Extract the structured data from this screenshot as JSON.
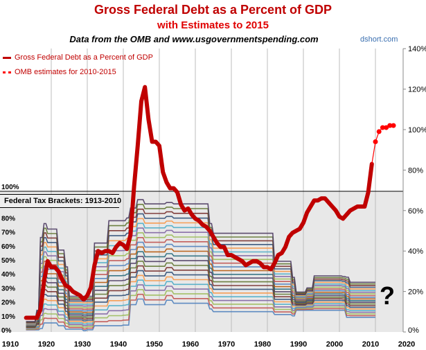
{
  "title": "Gross Federal Debt as a Percent of GDP",
  "subtitle": "with Estimates to 2015",
  "source": "Data from the OMB and www.usgovernmentspending.com",
  "credit": "dshort.com",
  "annotation": "?",
  "chart_data": {
    "type": "line",
    "x_ticks": [
      "1910",
      "1920",
      "1930",
      "1940",
      "1950",
      "1960",
      "1970",
      "1980",
      "1990",
      "2000",
      "2010",
      "2020"
    ],
    "xlim": [
      1910,
      2020
    ],
    "right_axis": {
      "ylim": [
        0,
        140
      ],
      "ticks": [
        "0%",
        "20%",
        "40%",
        "60%",
        "80%",
        "100%",
        "120%",
        "140%"
      ]
    },
    "left_axis": {
      "ylim": [
        0,
        100
      ],
      "ticks": [
        "0%",
        "10%",
        "20%",
        "30%",
        "40%",
        "50%",
        "60%",
        "70%",
        "80%",
        "100%"
      ]
    },
    "legend": [
      "Gross Federal Debt as a Percent of GDP",
      "OMB estimates for 2010-2015"
    ],
    "inset_label": "Federal Tax Brackets: 1913-2010",
    "colors": {
      "debt": "#c00000",
      "estimates": "#ff0000",
      "panel": "#e8e8e8"
    },
    "series": [
      {
        "name": "Gross Federal Debt as a Percent of GDP",
        "axis": "right",
        "x": [
          1913,
          1916,
          1917,
          1918,
          1919,
          1920,
          1921,
          1922,
          1923,
          1924,
          1925,
          1926,
          1927,
          1928,
          1929,
          1930,
          1931,
          1932,
          1933,
          1934,
          1935,
          1936,
          1937,
          1938,
          1939,
          1940,
          1941,
          1942,
          1943,
          1944,
          1945,
          1946,
          1947,
          1948,
          1949,
          1950,
          1951,
          1952,
          1953,
          1954,
          1955,
          1956,
          1957,
          1958,
          1959,
          1960,
          1961,
          1962,
          1963,
          1964,
          1965,
          1966,
          1967,
          1968,
          1969,
          1970,
          1971,
          1972,
          1973,
          1974,
          1975,
          1976,
          1977,
          1978,
          1979,
          1980,
          1981,
          1982,
          1983,
          1984,
          1985,
          1986,
          1987,
          1988,
          1989,
          1990,
          1991,
          1992,
          1993,
          1994,
          1995,
          1996,
          1997,
          1998,
          1999,
          2000,
          2001,
          2002,
          2003,
          2004,
          2005,
          2006,
          2007,
          2008,
          2009
        ],
        "y": [
          7,
          7,
          11,
          25,
          35,
          32,
          32,
          30,
          26,
          23,
          22,
          20,
          19,
          18,
          16,
          18,
          22,
          33,
          40,
          39,
          40,
          40,
          39,
          42,
          44,
          43,
          41,
          48,
          72,
          92,
          114,
          121,
          105,
          94,
          94,
          92,
          79,
          74,
          71,
          71,
          69,
          63,
          60,
          61,
          58,
          56,
          55,
          53,
          52,
          50,
          47,
          44,
          42,
          42,
          38,
          38,
          37,
          36,
          35,
          33,
          34,
          35,
          35,
          34,
          32,
          32,
          31,
          34,
          38,
          39,
          42,
          47,
          49,
          50,
          51,
          54,
          59,
          62,
          65,
          65,
          66,
          66,
          64,
          62,
          60,
          57,
          56,
          58,
          60,
          61,
          62,
          62,
          62,
          69,
          83
        ]
      },
      {
        "name": "OMB estimates for 2010-2015",
        "axis": "right",
        "x": [
          2009,
          2010,
          2011,
          2012,
          2013,
          2014,
          2015
        ],
        "y": [
          83,
          94,
          99,
          101,
          101,
          102,
          102
        ]
      },
      {
        "name": "Top bracket rate",
        "axis": "left",
        "x": [
          1913,
          1916,
          1917,
          1918,
          1919,
          1922,
          1924,
          1925,
          1932,
          1936,
          1941,
          1942,
          1944,
          1946,
          1952,
          1954,
          1964,
          1965,
          1982,
          1987,
          1988,
          1991,
          1993,
          2001,
          2002,
          2003,
          2010
        ],
        "y": [
          7,
          15,
          67,
          77,
          73,
          58,
          46,
          25,
          63,
          79,
          81,
          88,
          94,
          91,
          92,
          91,
          77,
          70,
          50,
          38.5,
          28,
          31,
          39.6,
          39.1,
          38.6,
          35,
          35
        ]
      },
      {
        "name": "Bottom bracket rate",
        "axis": "left",
        "x": [
          1913,
          1917,
          1918,
          1922,
          1924,
          1929,
          1930,
          1932,
          1940,
          1942,
          1944,
          1946,
          1952,
          1954,
          1964,
          1965,
          1982,
          1987,
          1988,
          2002,
          2010
        ],
        "y": [
          1,
          2,
          6,
          4,
          1.5,
          0.4,
          1.1,
          4,
          4.4,
          19,
          23,
          19,
          22.2,
          20,
          16,
          14,
          12,
          11,
          15,
          10,
          10
        ]
      }
    ]
  }
}
